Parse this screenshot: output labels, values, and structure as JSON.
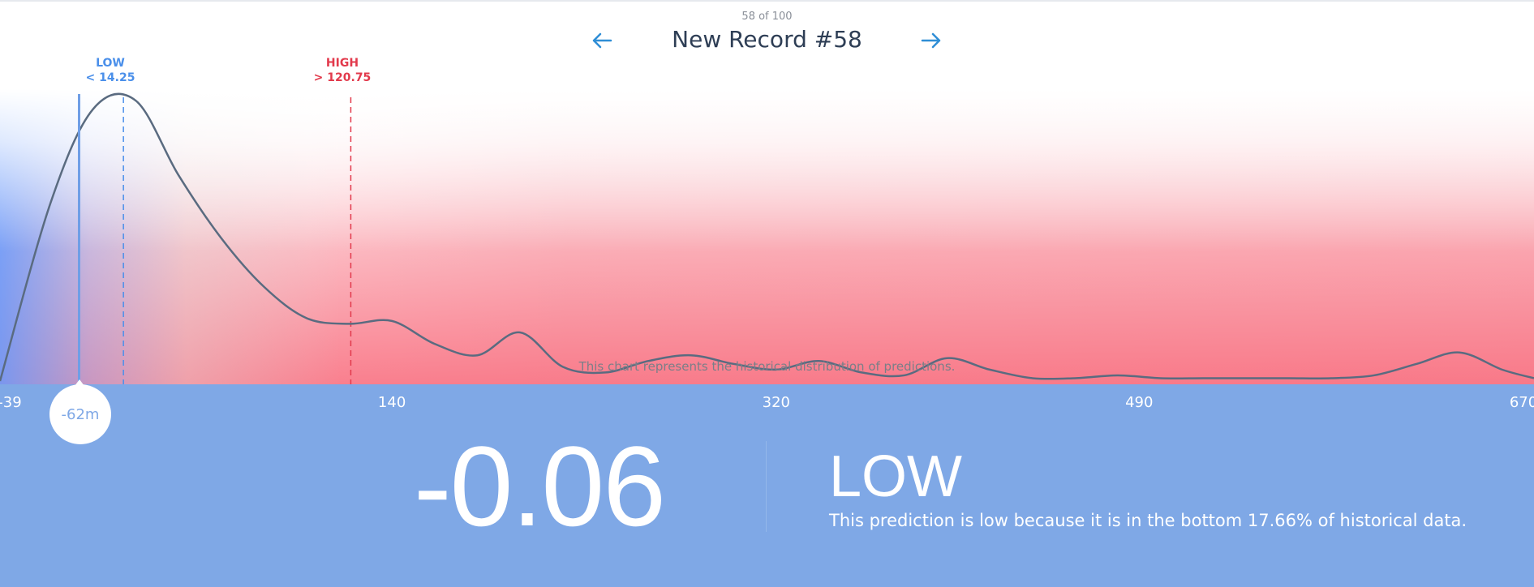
{
  "header": {
    "record_count": "58 of 100",
    "title": "New Record #58"
  },
  "thresholds": {
    "low": {
      "label": "LOW",
      "value": "< 14.25",
      "color": "#4a8fea"
    },
    "high": {
      "label": "HIGH",
      "value": "> 120.75",
      "color": "#e23a4c"
    }
  },
  "chart_caption": "This chart represents the historical distribution of predictions.",
  "axis": {
    "ticks": [
      "-39",
      "140",
      "320",
      "490",
      "670"
    ]
  },
  "marker": {
    "label": "-62m"
  },
  "result": {
    "value": "-0.06",
    "level": "LOW",
    "explanation": "This prediction is low because it is in the bottom 17.66% of historical data."
  },
  "colors": {
    "accent_blue": "#7fa8e6",
    "curve": "#5a6b80",
    "high_red": "#e23a4c",
    "nav_arrow": "#2f8ed6"
  },
  "icons": {
    "prev": "arrow-left-icon",
    "next": "arrow-right-icon"
  },
  "chart_data": {
    "type": "area",
    "x": [
      -39,
      -20,
      0,
      20,
      40,
      60,
      80,
      100,
      120,
      140,
      160,
      180,
      200,
      220,
      240,
      260,
      280,
      300,
      320,
      340,
      360,
      380,
      400,
      420,
      440,
      460,
      480,
      500,
      520,
      540,
      560,
      580,
      600,
      620,
      640,
      660,
      670
    ],
    "y": [
      0.0,
      0.62,
      0.95,
      0.98,
      0.72,
      0.5,
      0.33,
      0.22,
      0.2,
      0.21,
      0.13,
      0.09,
      0.17,
      0.05,
      0.03,
      0.07,
      0.09,
      0.06,
      0.04,
      0.07,
      0.03,
      0.02,
      0.08,
      0.04,
      0.01,
      0.01,
      0.02,
      0.01,
      0.01,
      0.01,
      0.01,
      0.01,
      0.02,
      0.06,
      0.1,
      0.04,
      0.01
    ],
    "xlim": [
      -39,
      670
    ],
    "x_ticks": [
      -39,
      140,
      320,
      490,
      670
    ],
    "thresholds": [
      14.25,
      120.75
    ],
    "marker": -62
  }
}
